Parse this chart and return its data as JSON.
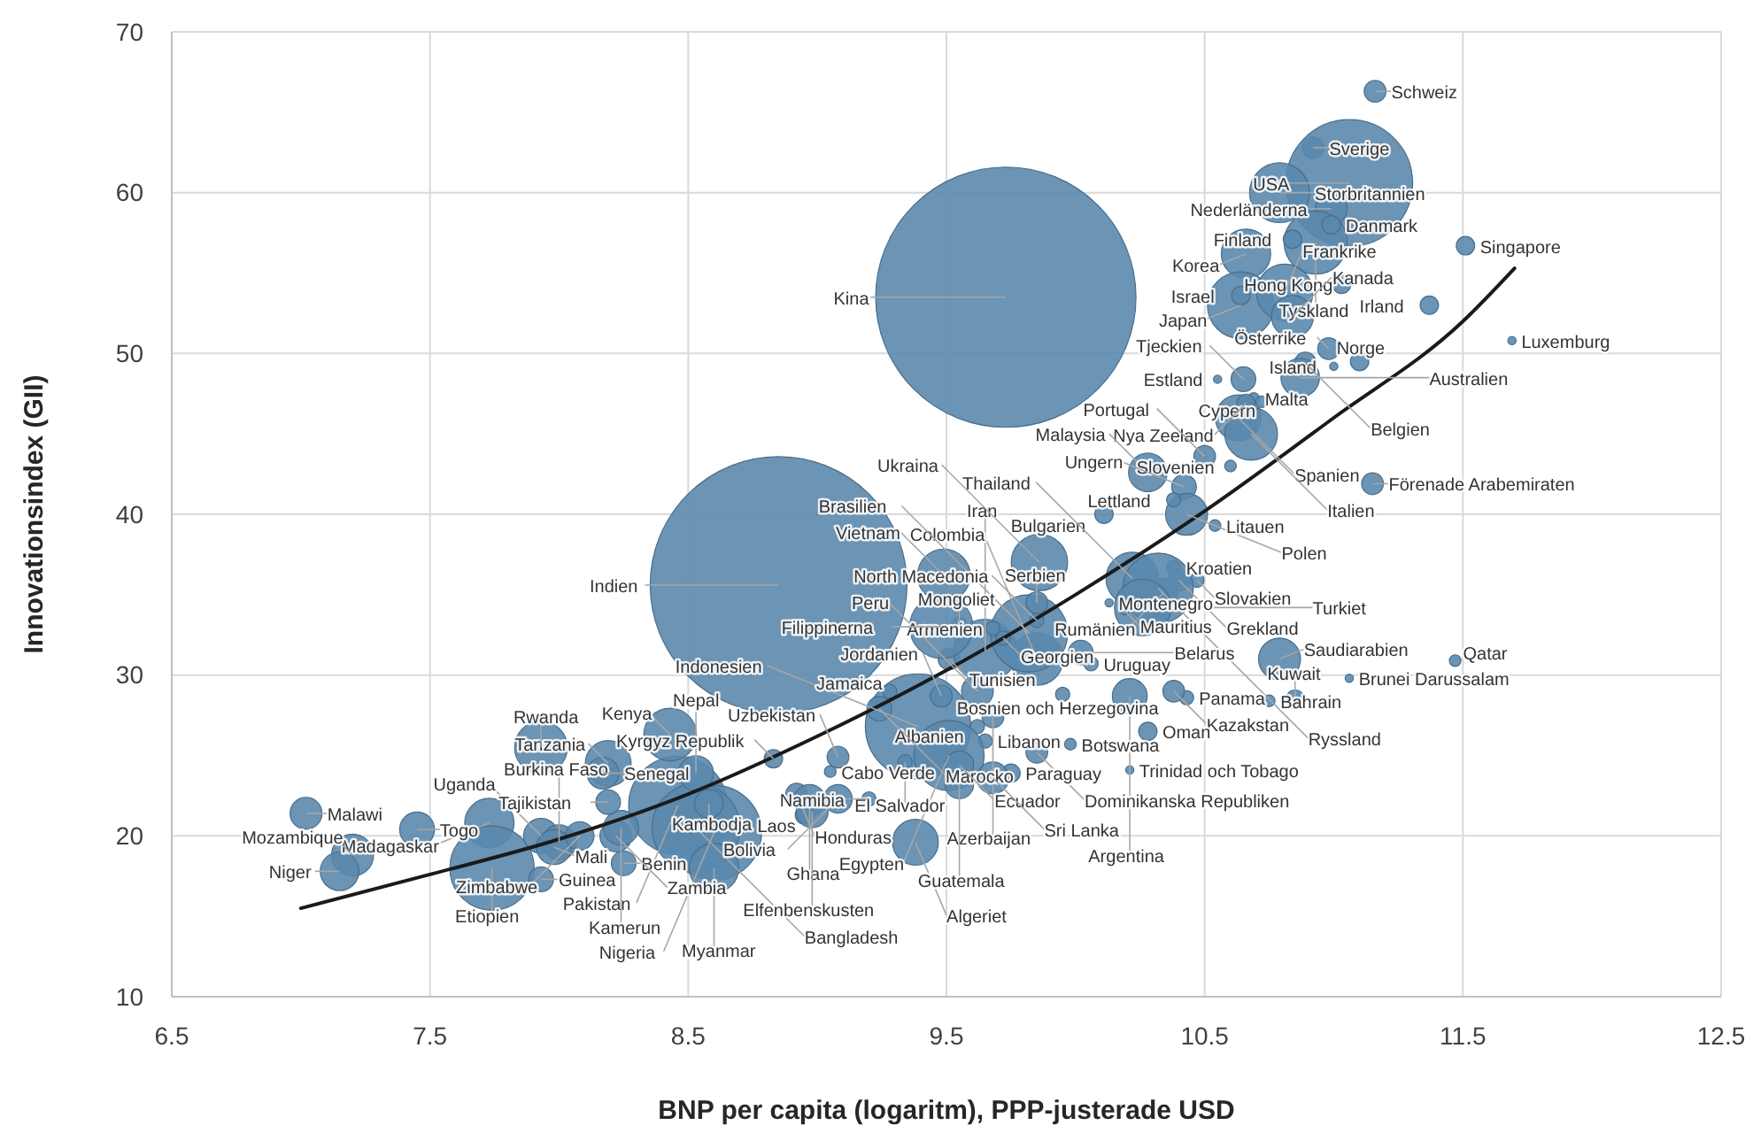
{
  "chart_data": {
    "type": "bubble",
    "xlabel": "BNP per capita (logaritm), PPP-justerade USD",
    "ylabel": "Innovationsindex (GII)",
    "xlim": [
      6.5,
      12.5
    ],
    "xticks": [
      6.5,
      7.5,
      8.5,
      9.5,
      10.5,
      11.5,
      12.5
    ],
    "ylim": [
      10,
      70
    ],
    "yticks": [
      10,
      20,
      30,
      40,
      50,
      60,
      70
    ],
    "grid": true,
    "series": [
      {
        "color": "#5b88ad",
        "x": [
          11.16,
          10.92,
          11.06,
          10.79,
          10.99,
          10.93,
          10.99,
          10.84,
          11.51,
          11.37,
          11.69,
          11.03,
          10.66,
          10.64,
          10.64,
          10.81,
          10.84,
          11.0,
          11.1,
          10.98,
          10.89,
          10.87,
          10.65,
          10.55,
          10.63,
          10.68,
          10.69,
          10.72,
          10.66,
          9.73,
          10.28,
          11.15,
          10.5,
          10.6,
          10.42,
          10.43,
          10.38,
          10.54,
          10.11,
          10.38,
          10.4,
          10.47,
          10.34,
          10.22,
          10.32,
          10.26,
          10.13,
          10.19,
          10.79,
          11.47,
          11.06,
          10.85,
          10.75,
          10.43,
          10.38,
          10.21,
          9.95,
          10.28,
          9.85,
          10.21,
          9.98,
          9.38,
          9.65,
          9.39,
          9.48,
          9.68,
          9.62,
          9.28,
          9.24,
          9.62,
          9.51,
          9.34,
          9.55,
          9.75,
          9.68,
          9.55,
          9.51,
          9.65,
          9.85,
          10.06,
          10.02,
          9.82,
          9.72,
          9.68,
          9.55,
          9.85,
          9.85,
          9.86,
          9.49,
          8.85,
          9.48,
          8.46,
          8.6,
          8.53,
          8.6,
          8.58,
          8.43,
          8.19,
          7.93,
          7.73,
          7.02,
          7.2,
          7.15,
          7.45,
          7.74,
          7.93,
          8.0,
          7.98,
          7.93,
          8.25,
          8.22,
          8.24,
          8.08,
          8.19,
          8.17,
          8.53,
          8.83,
          9.08,
          9.05,
          8.92,
          8.97,
          8.95,
          8.98,
          9.08,
          9.2
        ],
        "values": [
          66.3,
          62.8,
          60.6,
          60.0,
          59.0,
          56.9,
          58.0,
          57.1,
          56.7,
          53.0,
          50.8,
          54.3,
          56.2,
          53.0,
          53.6,
          53.8,
          52.3,
          49.2,
          49.5,
          50.3,
          49.4,
          48.5,
          48.4,
          48.4,
          46.0,
          45.0,
          47.2,
          47.0,
          46.9,
          53.5,
          42.6,
          41.9,
          43.6,
          43.0,
          41.7,
          40.0,
          40.9,
          39.3,
          40.0,
          36.7,
          35.9,
          35.9,
          35.1,
          36.0,
          35.4,
          34.2,
          34.5,
          34.0,
          31.0,
          30.9,
          29.8,
          28.5,
          28.4,
          28.6,
          29.0,
          28.7,
          28.8,
          26.5,
          25.2,
          24.1,
          25.7,
          19.6,
          25.9,
          26.8,
          28.7,
          27.4,
          26.8,
          29.0,
          27.9,
          29.0,
          25.0,
          24.6,
          24.4,
          23.9,
          23.6,
          23.2,
          31.0,
          31.5,
          31.0,
          30.7,
          31.4,
          32.6,
          32.3,
          32.9,
          33.2,
          33.4,
          34.5,
          37.0,
          36.2,
          35.6,
          33.0,
          21.9,
          20.2,
          20.5,
          18.0,
          22.0,
          26.3,
          24.5,
          25.5,
          20.8,
          21.4,
          18.8,
          17.8,
          20.4,
          18.0,
          20.0,
          19.6,
          19.3,
          17.3,
          18.3,
          20.0,
          20.5,
          20.0,
          22.1,
          23.9,
          23.9,
          24.8,
          24.9,
          24.0,
          22.6,
          22.2,
          21.3,
          21.5,
          22.3,
          22.3
        ],
        "sizes": [
          0.007,
          0.007,
          0.237,
          0.053,
          0.015,
          0.059,
          0.005,
          0.005,
          0.005,
          0.005,
          0.001,
          0.005,
          0.036,
          0.066,
          0.005,
          0.047,
          0.026,
          0.001,
          0.005,
          0.007,
          0.007,
          0.022,
          0.009,
          0.001,
          0.031,
          0.041,
          0.002,
          0.002,
          0.005,
          1,
          0.022,
          0.007,
          0.007,
          0.002,
          0.009,
          0.026,
          0.003,
          0.002,
          0.005,
          0.003,
          0.007,
          0.003,
          0.012,
          0.041,
          0.073,
          0.047,
          0.001,
          0.001,
          0.026,
          0.002,
          0.001,
          0.005,
          0.002,
          0.003,
          0.007,
          0.018,
          0.003,
          0.005,
          0.007,
          0.001,
          0.002,
          0.031,
          0.003,
          0.164,
          0.007,
          0.007,
          0.003,
          0.003,
          0.009,
          0.015,
          0.073,
          0.003,
          0.012,
          0.005,
          0.015,
          0.012,
          0.007,
          0.059,
          0.041,
          0.003,
          0.009,
          0.088,
          0.003,
          0.003,
          0.003,
          0.003,
          0.007,
          0.047,
          0.041,
          0.973,
          0.059,
          0.143,
          0.133,
          0.114,
          0.036,
          0.012,
          0.041,
          0.031,
          0.041,
          0.036,
          0.015,
          0.026,
          0.022,
          0.018,
          0.105,
          0.018,
          0.018,
          0.018,
          0.009,
          0.009,
          0.015,
          0.018,
          0.012,
          0.009,
          0.015,
          0.018,
          0.005,
          0.007,
          0.002,
          0.007,
          0.015,
          0.005,
          0.015,
          0.012,
          0.003
        ]
      },
      {
        "type": "line",
        "color": "#1a1a1a",
        "marker": "none",
        "line_style": "solid",
        "x": [
          7.0,
          7.5,
          8.0,
          8.5,
          9.0,
          9.5,
          10.0,
          10.5,
          11.0,
          11.5,
          11.7
        ],
        "values": [
          15.5,
          17.6,
          19.8,
          22.6,
          26.2,
          30.3,
          35.0,
          40.2,
          46.0,
          52.0,
          55.3
        ]
      }
    ],
    "annotations": [
      {
        "text": "Schweiz",
        "x": 11.16,
        "y": 66.3
      },
      {
        "text": "Sverige",
        "x": 10.92,
        "y": 62.8
      },
      {
        "text": "USA",
        "x": 11.06,
        "y": 60.6
      },
      {
        "text": "Storbritannien",
        "x": 10.79,
        "y": 60.0
      },
      {
        "text": "Nederländerna",
        "x": 10.99,
        "y": 59.0
      },
      {
        "text": "Tyskland",
        "x": 10.93,
        "y": 56.9
      },
      {
        "text": "Danmark",
        "x": 10.99,
        "y": 58.0
      },
      {
        "text": "Finland",
        "x": 10.84,
        "y": 57.1
      },
      {
        "text": "Singapore",
        "x": 11.51,
        "y": 56.7
      },
      {
        "text": "Irland",
        "x": 11.37,
        "y": 53.0
      },
      {
        "text": "Luxemburg",
        "x": 11.69,
        "y": 50.8
      },
      {
        "text": "Hong Kong",
        "x": 11.03,
        "y": 54.3
      },
      {
        "text": "Korea",
        "x": 10.66,
        "y": 56.2
      },
      {
        "text": "Japan",
        "x": 10.64,
        "y": 53.0
      },
      {
        "text": "Israel",
        "x": 10.64,
        "y": 53.6
      },
      {
        "text": "Frankrike",
        "x": 10.81,
        "y": 53.8
      },
      {
        "text": "Kanada",
        "x": 10.84,
        "y": 52.3
      },
      {
        "text": "Island",
        "x": 11.0,
        "y": 49.2
      },
      {
        "text": "Norge",
        "x": 11.1,
        "y": 49.5
      },
      {
        "text": "Österrike",
        "x": 10.98,
        "y": 50.3
      },
      {
        "text": "Belgien",
        "x": 10.89,
        "y": 49.4
      },
      {
        "text": "Australien",
        "x": 10.87,
        "y": 48.5
      },
      {
        "text": "Tjeckien",
        "x": 10.65,
        "y": 48.4
      },
      {
        "text": "Estland",
        "x": 10.55,
        "y": 48.4
      },
      {
        "text": "Spanien",
        "x": 10.63,
        "y": 46.0
      },
      {
        "text": "Italien",
        "x": 10.68,
        "y": 45.0
      },
      {
        "text": "Malta",
        "x": 10.69,
        "y": 47.2
      },
      {
        "text": "Cypern",
        "x": 10.72,
        "y": 47.0
      },
      {
        "text": "Nya Zeeland",
        "x": 10.66,
        "y": 46.9
      },
      {
        "text": "Kina",
        "x": 9.73,
        "y": 53.5
      },
      {
        "text": "Malaysia",
        "x": 10.28,
        "y": 42.6
      },
      {
        "text": "Förenade Arabemiraten",
        "x": 11.15,
        "y": 41.9
      },
      {
        "text": "Portugal",
        "x": 10.5,
        "y": 43.6
      },
      {
        "text": "Slovenien",
        "x": 10.6,
        "y": 43.0
      },
      {
        "text": "Ungern",
        "x": 10.42,
        "y": 41.7
      },
      {
        "text": "Polen",
        "x": 10.43,
        "y": 40.0
      },
      {
        "text": "Lettland",
        "x": 10.38,
        "y": 40.9
      },
      {
        "text": "Litauen",
        "x": 10.54,
        "y": 39.3
      },
      {
        "text": "Bulgarien",
        "x": 10.11,
        "y": 40.0
      },
      {
        "text": "Kroatien",
        "x": 10.38,
        "y": 36.7
      },
      {
        "text": "Grekland",
        "x": 10.4,
        "y": 35.9
      },
      {
        "text": "Slovakien",
        "x": 10.47,
        "y": 35.9
      },
      {
        "text": "Rumänien",
        "x": 10.34,
        "y": 35.1
      },
      {
        "text": "Thailand",
        "x": 10.22,
        "y": 36.0
      },
      {
        "text": "Ryssland",
        "x": 10.32,
        "y": 35.4
      },
      {
        "text": "Turkiet",
        "x": 10.26,
        "y": 34.2
      },
      {
        "text": "Montenegro",
        "x": 10.13,
        "y": 34.5
      },
      {
        "text": "Mauritius",
        "x": 10.19,
        "y": 34.0
      },
      {
        "text": "Saudiarabien",
        "x": 10.79,
        "y": 31.0
      },
      {
        "text": "Qatar",
        "x": 11.47,
        "y": 30.9
      },
      {
        "text": "Brunei Darussalam",
        "x": 11.06,
        "y": 29.8
      },
      {
        "text": "Kuwait",
        "x": 10.85,
        "y": 28.5
      },
      {
        "text": "Bahrain",
        "x": 10.75,
        "y": 28.4
      },
      {
        "text": "Panama",
        "x": 10.43,
        "y": 28.6
      },
      {
        "text": "Kazakstan",
        "x": 10.38,
        "y": 29.0
      },
      {
        "text": "Argentina",
        "x": 10.21,
        "y": 28.7
      },
      {
        "text": "Bosnien och Herzegovina",
        "x": 9.95,
        "y": 28.8
      },
      {
        "text": "Oman",
        "x": 10.28,
        "y": 26.5
      },
      {
        "text": "Dominikanska Republiken",
        "x": 9.85,
        "y": 25.2
      },
      {
        "text": "Trinidad och Tobago",
        "x": 10.21,
        "y": 24.1
      },
      {
        "text": "Botswana",
        "x": 9.98,
        "y": 25.7
      },
      {
        "text": "Algeriet",
        "x": 9.38,
        "y": 19.6
      },
      {
        "text": "Libanon",
        "x": 9.65,
        "y": 25.9
      },
      {
        "text": "Indonesien",
        "x": 9.39,
        "y": 26.8
      },
      {
        "text": "Jordanien",
        "x": 9.48,
        "y": 28.7
      },
      {
        "text": "Azerbaijan",
        "x": 9.68,
        "y": 27.4
      },
      {
        "text": "Albanien",
        "x": 9.62,
        "y": 26.8
      },
      {
        "text": "Jamaica",
        "x": 9.28,
        "y": 29.0
      },
      {
        "text": "Marocko",
        "x": 9.24,
        "y": 27.9
      },
      {
        "text": "Peru",
        "x": 9.62,
        "y": 29.0
      },
      {
        "text": "Egypten",
        "x": 9.51,
        "y": 25.0
      },
      {
        "text": "El Salvador",
        "x": 9.34,
        "y": 24.6
      },
      {
        "text": "Ecuador",
        "x": 9.55,
        "y": 24.4
      },
      {
        "text": "Paraguay",
        "x": 9.75,
        "y": 23.9
      },
      {
        "text": "Sri Lanka",
        "x": 9.68,
        "y": 23.6
      },
      {
        "text": "Guatemala",
        "x": 9.55,
        "y": 23.2
      },
      {
        "text": "Tunisien",
        "x": 9.51,
        "y": 31.0
      },
      {
        "text": "Iran",
        "x": 9.65,
        "y": 31.5
      },
      {
        "text": "Colombia",
        "x": 9.85,
        "y": 31.0
      },
      {
        "text": "Uruguay",
        "x": 10.06,
        "y": 30.7
      },
      {
        "text": "Belarus",
        "x": 10.02,
        "y": 31.4
      },
      {
        "text": "Brasilien",
        "x": 9.82,
        "y": 32.6
      },
      {
        "text": "Georgien",
        "x": 9.72,
        "y": 32.3
      },
      {
        "text": "Armenien",
        "x": 9.68,
        "y": 32.9
      },
      {
        "text": "Mongoliet",
        "x": 9.55,
        "y": 33.2
      },
      {
        "text": "North Macedonia",
        "x": 9.85,
        "y": 33.4
      },
      {
        "text": "Serbien",
        "x": 9.85,
        "y": 34.5
      },
      {
        "text": "Ukraina",
        "x": 9.86,
        "y": 37.0
      },
      {
        "text": "Vietnam",
        "x": 9.49,
        "y": 36.2
      },
      {
        "text": "Indien",
        "x": 8.85,
        "y": 35.6
      },
      {
        "text": "Filippinerna",
        "x": 9.48,
        "y": 33.0
      },
      {
        "text": "Pakistan",
        "x": 8.46,
        "y": 21.9
      },
      {
        "text": "Nigeria",
        "x": 8.6,
        "y": 20.2
      },
      {
        "text": "Bangladesh",
        "x": 8.53,
        "y": 20.5
      },
      {
        "text": "Myanmar",
        "x": 8.6,
        "y": 18.0
      },
      {
        "text": "Kambodja",
        "x": 8.58,
        "y": 22.0
      },
      {
        "text": "Kenya",
        "x": 8.43,
        "y": 26.3
      },
      {
        "text": "Tanzania",
        "x": 8.19,
        "y": 24.5
      },
      {
        "text": "Rwanda",
        "x": 7.93,
        "y": 25.5
      },
      {
        "text": "Madagaskar",
        "x": 7.73,
        "y": 20.8
      },
      {
        "text": "Malawi",
        "x": 7.02,
        "y": 21.4
      },
      {
        "text": "Mozambique",
        "x": 7.2,
        "y": 18.8
      },
      {
        "text": "Niger",
        "x": 7.15,
        "y": 17.8
      },
      {
        "text": "Togo",
        "x": 7.45,
        "y": 20.4
      },
      {
        "text": "Etiopien",
        "x": 7.74,
        "y": 18.0
      },
      {
        "text": "Uganda",
        "x": 7.93,
        "y": 20.0
      },
      {
        "text": "Burkina Faso",
        "x": 8.0,
        "y": 19.6
      },
      {
        "text": "Mali",
        "x": 7.98,
        "y": 19.3
      },
      {
        "text": "Guinea",
        "x": 7.93,
        "y": 17.3
      },
      {
        "text": "Benin",
        "x": 8.25,
        "y": 18.3
      },
      {
        "text": "Zambia",
        "x": 8.22,
        "y": 20.0
      },
      {
        "text": "Kamerun",
        "x": 8.24,
        "y": 20.5
      },
      {
        "text": "Zimbabwe",
        "x": 8.08,
        "y": 20.0
      },
      {
        "text": "Tajikistan",
        "x": 8.19,
        "y": 22.1
      },
      {
        "text": "Senegal",
        "x": 8.17,
        "y": 23.9
      },
      {
        "text": "Nepal",
        "x": 8.53,
        "y": 23.9
      },
      {
        "text": "Kyrgyz Republik",
        "x": 8.83,
        "y": 24.8
      },
      {
        "text": "Uzbekistan",
        "x": 9.08,
        "y": 24.9
      },
      {
        "text": "Cabo Verde",
        "x": 9.05,
        "y": 24.0
      },
      {
        "text": "Honduras",
        "x": 8.92,
        "y": 22.6
      },
      {
        "text": "Ghana",
        "x": 8.97,
        "y": 22.2
      },
      {
        "text": "Laos",
        "x": 8.95,
        "y": 21.3
      },
      {
        "text": "Elfenbenskusten",
        "x": 8.98,
        "y": 21.5
      },
      {
        "text": "Bolivia",
        "x": 9.08,
        "y": 22.3
      },
      {
        "text": "Namibia",
        "x": 9.2,
        "y": 22.3
      }
    ]
  }
}
